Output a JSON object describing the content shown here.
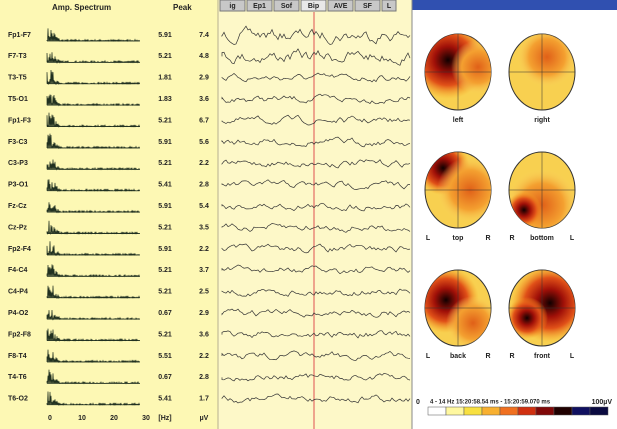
{
  "left_panel": {
    "spectrum_header": "Amp. Spectrum",
    "peak_header": "Peak",
    "channels": [
      {
        "label": "Fp1-F7",
        "freq": "5.91",
        "amp": "7.4"
      },
      {
        "label": "F7-T3",
        "freq": "5.21",
        "amp": "4.8"
      },
      {
        "label": "T3-T5",
        "freq": "1.81",
        "amp": "2.9"
      },
      {
        "label": "T5-O1",
        "freq": "1.83",
        "amp": "3.6"
      },
      {
        "label": "Fp1-F3",
        "freq": "5.21",
        "amp": "6.7"
      },
      {
        "label": "F3-C3",
        "freq": "5.91",
        "amp": "5.6"
      },
      {
        "label": "C3-P3",
        "freq": "5.21",
        "amp": "2.2"
      },
      {
        "label": "P3-O1",
        "freq": "5.41",
        "amp": "2.8"
      },
      {
        "label": "Fz-Cz",
        "freq": "5.91",
        "amp": "5.4"
      },
      {
        "label": "Cz-Pz",
        "freq": "5.21",
        "amp": "3.5"
      },
      {
        "label": "Fp2-F4",
        "freq": "5.91",
        "amp": "2.2"
      },
      {
        "label": "F4-C4",
        "freq": "5.21",
        "amp": "3.7"
      },
      {
        "label": "C4-P4",
        "freq": "5.21",
        "amp": "2.5"
      },
      {
        "label": "P4-O2",
        "freq": "0.67",
        "amp": "2.9"
      },
      {
        "label": "Fp2-F8",
        "freq": "5.21",
        "amp": "3.6"
      },
      {
        "label": "F8-T4",
        "freq": "5.51",
        "amp": "2.2"
      },
      {
        "label": "T4-T6",
        "freq": "0.67",
        "amp": "2.8"
      },
      {
        "label": "T6-O2",
        "freq": "5.41",
        "amp": "1.7"
      }
    ],
    "axis_ticks": [
      "0",
      "10",
      "20",
      "30"
    ],
    "freq_unit": "[Hz]",
    "amp_unit": "µV"
  },
  "tabs": [
    "ig",
    "Ep1",
    "Sof",
    "Bip",
    "AVE",
    "SF",
    "L"
  ],
  "maps": {
    "views": [
      {
        "name": "left"
      },
      {
        "name": "right"
      },
      {
        "name": "top",
        "sides": [
          "L",
          "R"
        ]
      },
      {
        "name": "bottom",
        "sides": [
          "R",
          "L"
        ]
      },
      {
        "name": "back",
        "sides": [
          "L",
          "R"
        ]
      },
      {
        "name": "front",
        "sides": [
          "R",
          "L"
        ]
      }
    ]
  },
  "colorbar": {
    "min_label": "0",
    "info": "4 - 14 Hz  15:20:58.54 ms - 15:20:59.070 ms",
    "max_label": "100µV"
  }
}
